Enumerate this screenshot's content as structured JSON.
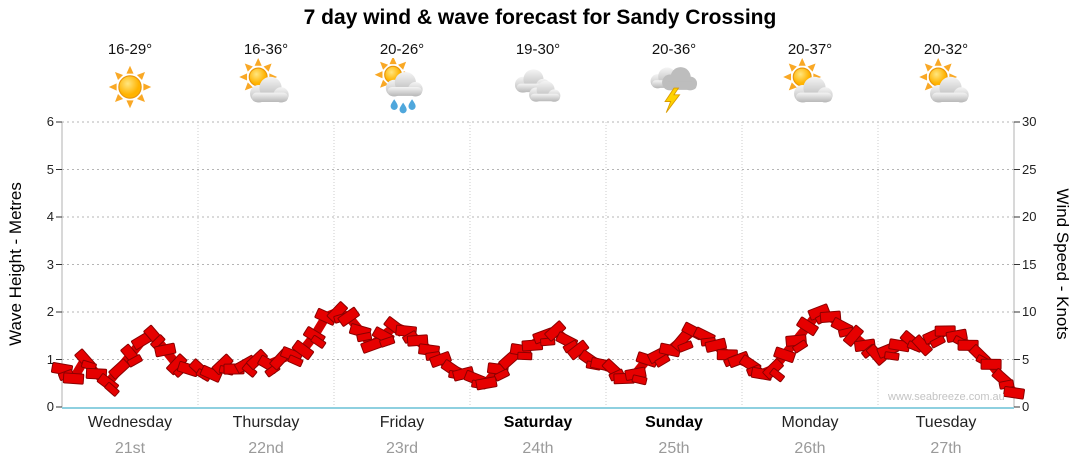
{
  "title": "7 day wind & wave forecast for Sandy Crossing",
  "watermark": "www.seabreeze.com.au",
  "days": [
    {
      "name": "Wednesday",
      "date": "21st",
      "temp": "16-29°",
      "icon": "sunny",
      "weekend": false
    },
    {
      "name": "Thursday",
      "date": "22nd",
      "temp": "16-36°",
      "icon": "partly-cloudy",
      "weekend": false
    },
    {
      "name": "Friday",
      "date": "23rd",
      "temp": "20-26°",
      "icon": "sun-showers",
      "weekend": false
    },
    {
      "name": "Saturday",
      "date": "24th",
      "temp": "19-30°",
      "icon": "cloudy",
      "weekend": true
    },
    {
      "name": "Sunday",
      "date": "25th",
      "temp": "20-36°",
      "icon": "thunderstorm",
      "weekend": true
    },
    {
      "name": "Monday",
      "date": "26th",
      "temp": "20-37°",
      "icon": "partly-cloudy",
      "weekend": false
    },
    {
      "name": "Tuesday",
      "date": "27th",
      "temp": "20-32°",
      "icon": "partly-cloudy",
      "weekend": false
    }
  ],
  "chart_data": {
    "type": "area",
    "title": "7 day wind & wave forecast for Sandy Crossing",
    "x_categories": [
      "Wednesday 21st",
      "Thursday 22nd",
      "Friday 23rd",
      "Saturday 24th",
      "Sunday 25th",
      "Monday 26th",
      "Tuesday 27th"
    ],
    "y_left": {
      "label": "Wave Height - Metres",
      "min": 0,
      "max": 6,
      "ticks": [
        0,
        1,
        2,
        3,
        4,
        5,
        6
      ]
    },
    "y_right": {
      "label": "Wind Speed - Knots",
      "min": 0,
      "max": 30,
      "ticks": [
        0,
        5,
        10,
        15,
        20,
        25,
        30
      ]
    },
    "grid": "horizontal-dotted",
    "legend": "none",
    "series": [
      {
        "name": "Wind Speed",
        "color": "#e60000",
        "unit": "knots",
        "points_per_day": 12,
        "values_knots": [
          4,
          3,
          5,
          3.5,
          2.5,
          4,
          5.5,
          7,
          7.5,
          6,
          4.5,
          4,
          4,
          3.5,
          4.5,
          4,
          4.5,
          5,
          4.5,
          5,
          5.5,
          6,
          7.5,
          9.5,
          10,
          9.5,
          8,
          6.5,
          7.5,
          8.5,
          8,
          7,
          6,
          5,
          4,
          3.5,
          3,
          2.5,
          4,
          5,
          6,
          6.5,
          7.5,
          8,
          7,
          6,
          5,
          4.5,
          4,
          3,
          3.5,
          5,
          5.5,
          6,
          7,
          8,
          7.5,
          6.5,
          5.5,
          5,
          4.5,
          3.5,
          4,
          5.5,
          7,
          8.5,
          10,
          9.5,
          8.5,
          7.5,
          6.5,
          5.5,
          6,
          6.5,
          7,
          6.5,
          7.5,
          8,
          7.5,
          6.5,
          5.5,
          4.5,
          3,
          1.5
        ]
      }
    ]
  }
}
